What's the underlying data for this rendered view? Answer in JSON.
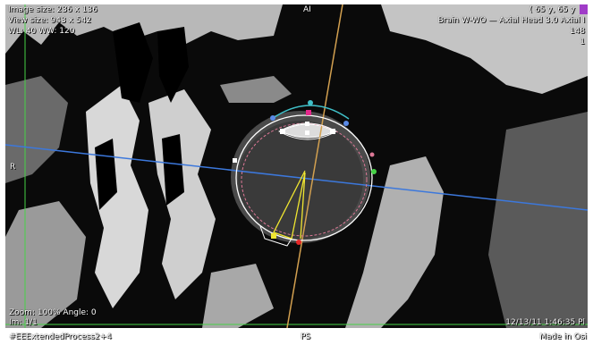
{
  "overlay": {
    "image_size": "Image size: 236 x 136",
    "view_size": "View size: 943 x 542",
    "window_level": "WL: 40 WW: 120",
    "patient_info": "( 65 y, 65 y",
    "series_description": "Brain W-WO — Axial Head 3.0 Axial I",
    "series_number": "148",
    "image_count": "1",
    "orientation_top": "AI",
    "orientation_left": "R",
    "orientation_bottom": "PS",
    "zoom_angle": "Zoom: 100% Angle: 0",
    "image_index": "Im: 1/1",
    "process_label": "#EEExtendedProcess2+4",
    "datetime": "12/13/11 1:46:35 Pl",
    "made_in": "Made in Osi"
  },
  "colors": {
    "ui_frame": "#ffffff",
    "axis_green": "#46d246",
    "plane_blue": "#3c78dc",
    "plane_orange": "#d2a050",
    "measure_yellow": "#f0e630",
    "roi_pink": "#dc7896",
    "roi_cyan": "#40c0c8",
    "accent_purple": "#a03cc8",
    "marker_magenta": "#e6288c",
    "marker_red": "#e62828"
  },
  "icons": {
    "accent_badge": "colored-square-icon"
  }
}
